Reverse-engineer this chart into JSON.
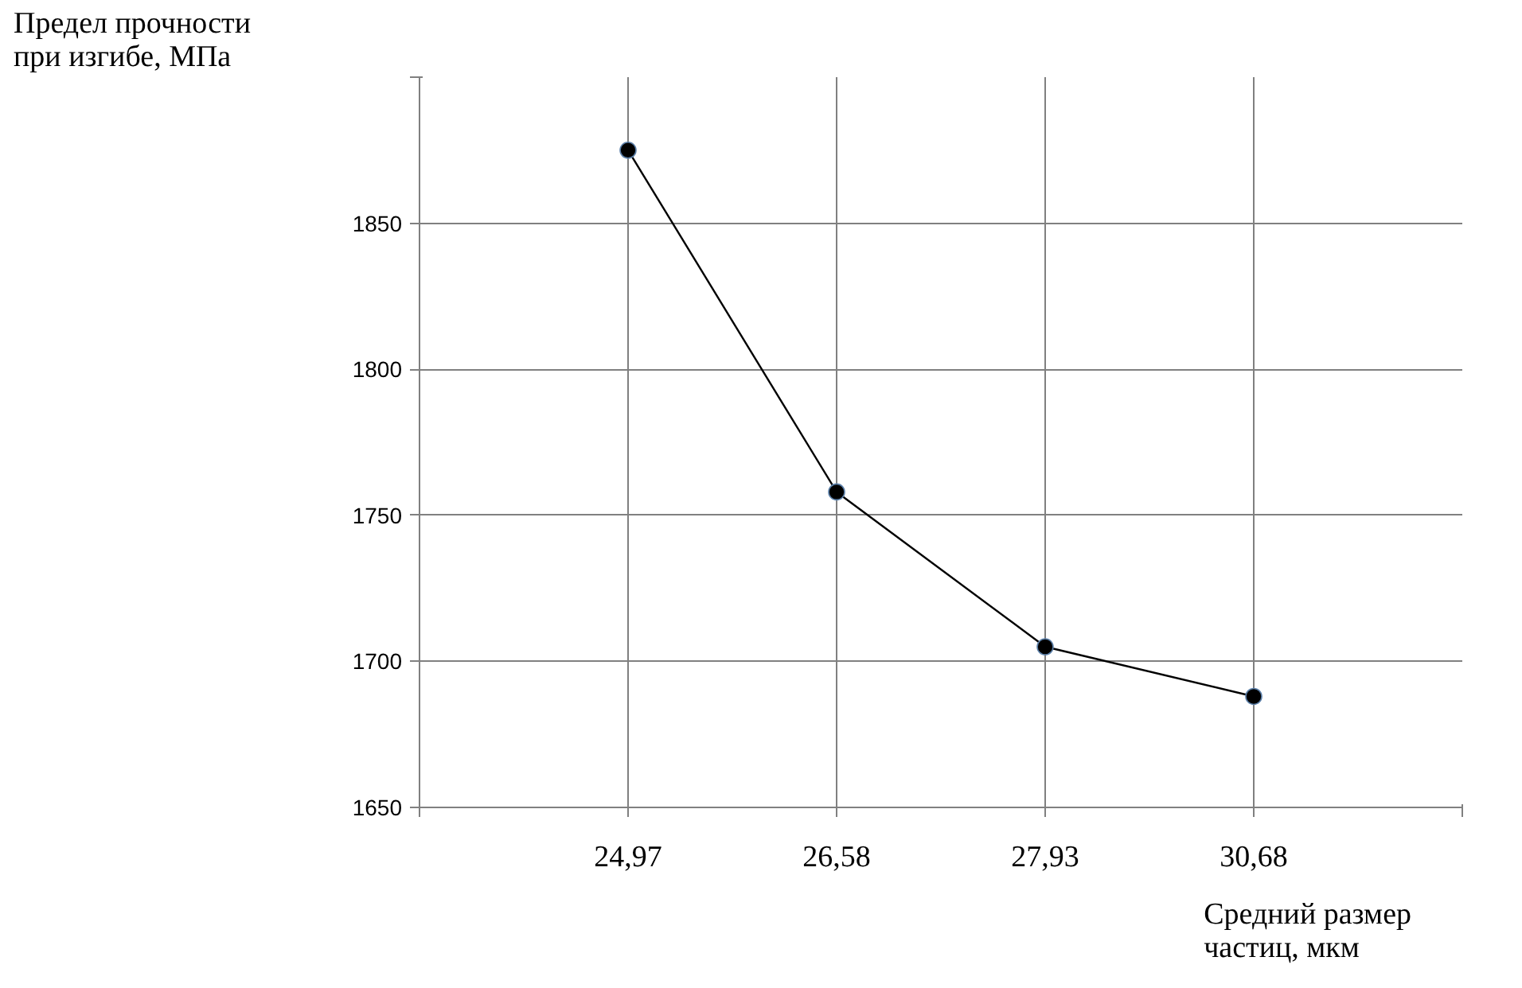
{
  "chart_data": {
    "type": "line",
    "xlabel": "Средний размер частиц, мкм",
    "ylabel": "Предел прочности при изгибе, МПа",
    "categories": [
      "24,97",
      "26,58",
      "27,93",
      "30,68"
    ],
    "series": [
      {
        "color": "#000000",
        "values": [
          1875,
          1758,
          1705,
          1688
        ]
      }
    ],
    "ylim": [
      1650,
      1900
    ],
    "yticks": [
      1650,
      1700,
      1750,
      1800,
      1850,
      {
        "value": 1900,
        "label": null
      }
    ],
    "grid": true,
    "marker": "circle",
    "line_style": "solid"
  }
}
